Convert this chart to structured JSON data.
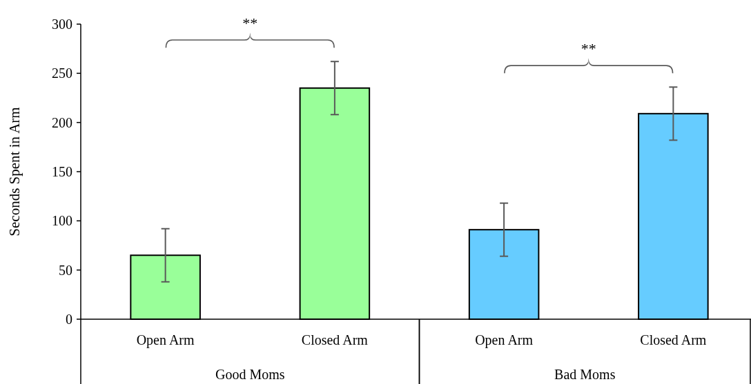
{
  "chart_data": {
    "type": "bar",
    "ylabel": "Seconds Spent in Arm",
    "categories": [
      "Open Arm",
      "Closed Arm",
      "Open Arm",
      "Closed Arm"
    ],
    "values": [
      65,
      235,
      91,
      209
    ],
    "colors": [
      "#99ff99",
      "#99ff99",
      "#66ccff",
      "#66ccff"
    ],
    "errors": [
      27,
      27,
      27,
      27
    ],
    "ylim": [
      0,
      300
    ],
    "yticks": [
      0,
      50,
      100,
      150,
      200,
      250,
      300
    ],
    "grid": false,
    "legend": false,
    "annotations": [
      "**",
      "**",
      "Good Moms",
      "Bad Moms"
    ]
  }
}
